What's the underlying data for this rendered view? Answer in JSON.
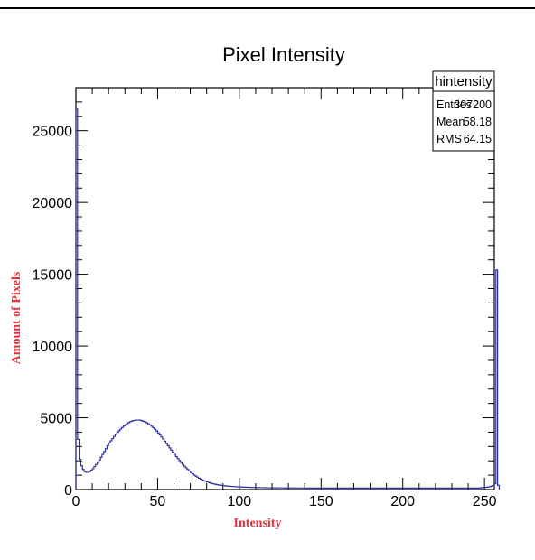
{
  "chart_data": {
    "type": "histogram",
    "title": "Pixel Intensity",
    "xlabel": "Intensity",
    "ylabel": "Amount of Pixels",
    "xlim": [
      0,
      256
    ],
    "ylim": [
      0,
      28000
    ],
    "xticks": [
      0,
      50,
      100,
      150,
      200,
      250
    ],
    "yticks": [
      0,
      5000,
      10000,
      15000,
      20000,
      25000
    ],
    "line_color": "#2b2fa0",
    "label_color": "#e8303a",
    "bin_width": 1,
    "values": [
      26500,
      3500,
      2100,
      1650,
      1400,
      1250,
      1200,
      1200,
      1250,
      1350,
      1450,
      1600,
      1750,
      1900,
      2050,
      2250,
      2450,
      2650,
      2850,
      3050,
      3250,
      3400,
      3550,
      3700,
      3850,
      3980,
      4100,
      4220,
      4330,
      4430,
      4520,
      4600,
      4670,
      4730,
      4780,
      4810,
      4830,
      4840,
      4840,
      4830,
      4800,
      4760,
      4710,
      4650,
      4580,
      4500,
      4410,
      4310,
      4200,
      4080,
      3950,
      3810,
      3670,
      3520,
      3370,
      3210,
      3060,
      2900,
      2750,
      2600,
      2450,
      2300,
      2160,
      2020,
      1880,
      1750,
      1630,
      1510,
      1400,
      1290,
      1190,
      1100,
      1010,
      930,
      860,
      790,
      730,
      670,
      620,
      570,
      530,
      490,
      450,
      420,
      390,
      360,
      340,
      320,
      300,
      285,
      270,
      258,
      246,
      235,
      225,
      216,
      208,
      200,
      193,
      187,
      180,
      175,
      170,
      165,
      160,
      156,
      152,
      148,
      145,
      142,
      139,
      136,
      133,
      131,
      129,
      127,
      125,
      123,
      121,
      120,
      119,
      118,
      117,
      116,
      115,
      114,
      113,
      112,
      111,
      110,
      110,
      109,
      108,
      108,
      107,
      107,
      106,
      106,
      105,
      105,
      104,
      104,
      103,
      103,
      103,
      102,
      102,
      102,
      101,
      101,
      101,
      100,
      100,
      100,
      100,
      100,
      100,
      100,
      100,
      100,
      100,
      100,
      100,
      100,
      100,
      100,
      100,
      100,
      100,
      100,
      100,
      100,
      100,
      100,
      100,
      100,
      100,
      100,
      100,
      100,
      100,
      100,
      100,
      100,
      100,
      100,
      100,
      100,
      100,
      100,
      100,
      100,
      100,
      100,
      100,
      100,
      100,
      100,
      100,
      100,
      100,
      100,
      100,
      100,
      100,
      100,
      100,
      100,
      100,
      100,
      100,
      100,
      100,
      100,
      100,
      100,
      100,
      100,
      100,
      100,
      100,
      100,
      100,
      100,
      100,
      100,
      100,
      100,
      100,
      100,
      100,
      100,
      100,
      100,
      100,
      100,
      100,
      100,
      100,
      100,
      100,
      100,
      100,
      100,
      100,
      100,
      100,
      120,
      130,
      140,
      150,
      160,
      180,
      200,
      240,
      300,
      400,
      15300,
      300
    ],
    "stats_box": {
      "title": "hintensity",
      "rows": [
        {
          "label": "Entries",
          "value": "307200"
        },
        {
          "label": "Mean",
          "value": "58.18"
        },
        {
          "label": "RMS",
          "value": "64.15"
        }
      ]
    }
  }
}
